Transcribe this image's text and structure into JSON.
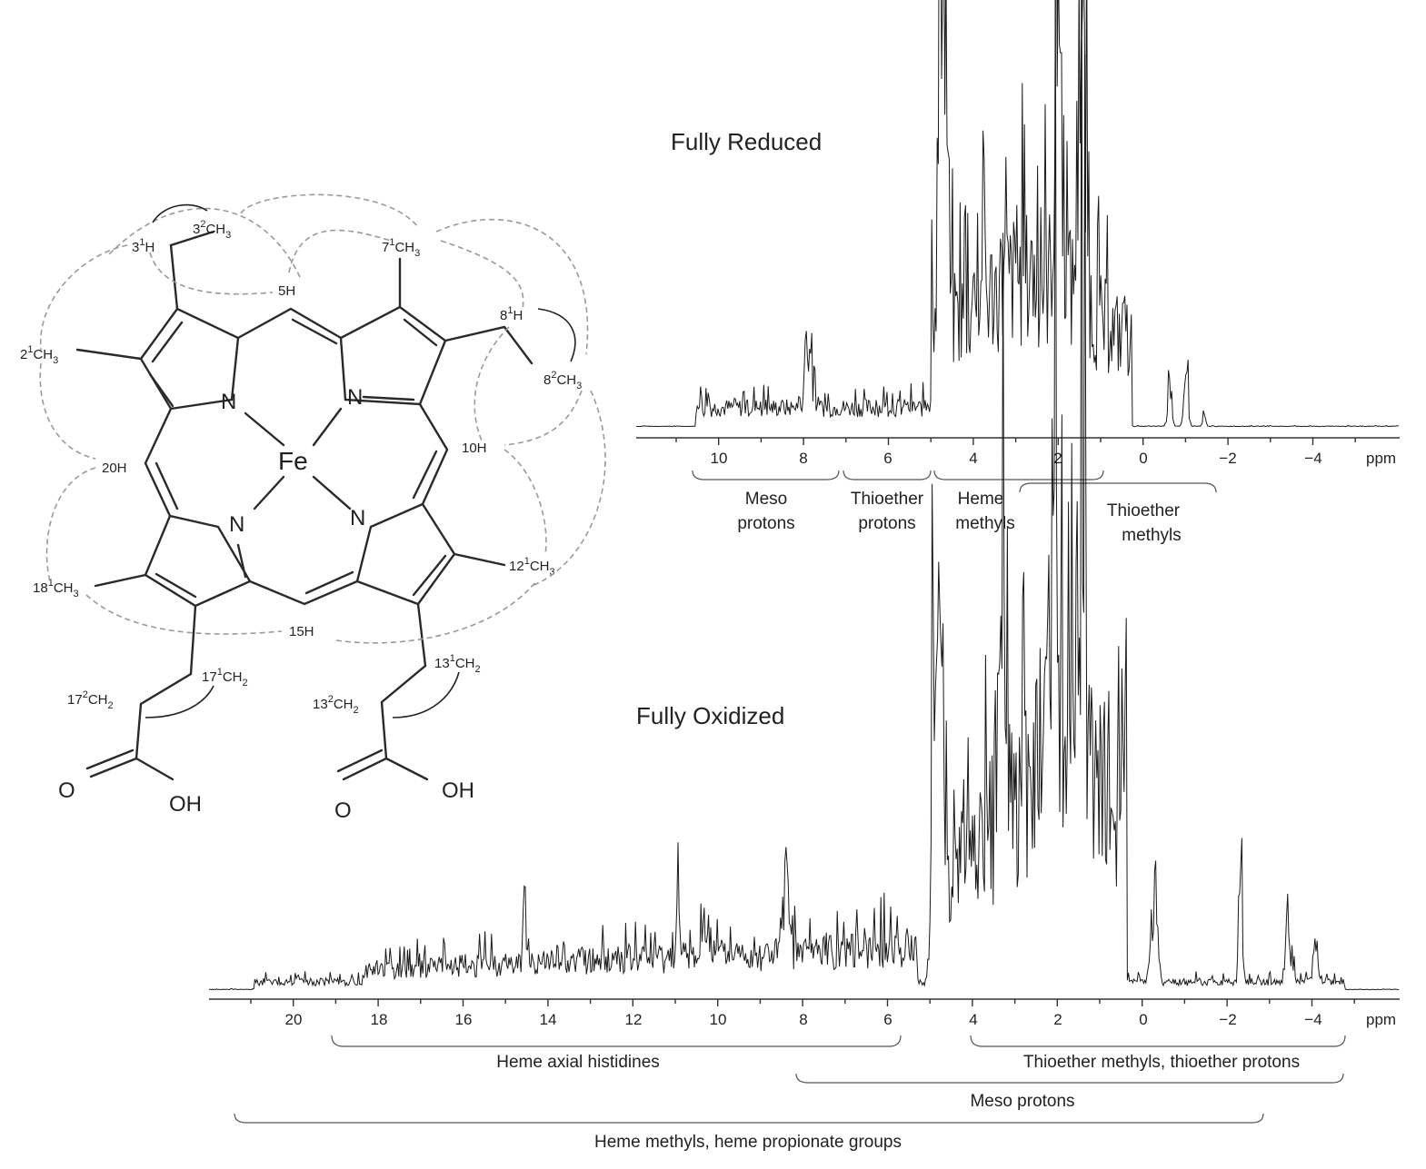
{
  "titles": {
    "reduced": "Fully Reduced",
    "oxidized": "Fully Oxidized"
  },
  "axis_unit": "ppm",
  "reduced_axis": {
    "ticks": [
      "10",
      "8",
      "6",
      "4",
      "2",
      "0",
      "−2",
      "−4"
    ],
    "groups": [
      {
        "line1": "Meso",
        "line2": "protons"
      },
      {
        "line1": "Thioether",
        "line2": "protons"
      },
      {
        "line1": "Heme",
        "line2": "methyls"
      },
      {
        "line1": "Thioether",
        "line2": "methyls"
      }
    ]
  },
  "oxidized_axis": {
    "ticks": [
      "20",
      "18",
      "16",
      "14",
      "12",
      "10",
      "8",
      "6",
      "4",
      "2",
      "0",
      "−2",
      "−4"
    ],
    "groups": [
      "Heme axial histidines",
      "Thioether methyls, thioether protons",
      "Meso protons",
      "Heme methyls, heme propionate groups"
    ]
  },
  "structure": {
    "center": "Fe",
    "nitrogen": "N",
    "labels": {
      "h3_1": "3",
      "h3_1b": "1",
      "h3_1c": "H",
      "c3_2": "3",
      "c3_2b": "2",
      "c3_2c": "CH",
      "c3_2d": "3",
      "c7_1": "7",
      "c7_1b": "1",
      "c7_1c": "CH",
      "c7_1d": "3",
      "h5": "5H",
      "c2_1": "2",
      "c2_1b": "1",
      "c2_1c": "CH",
      "c2_1d": "3",
      "h8_1": "8",
      "h8_1b": "1",
      "h8_1c": "H",
      "c8_2": "8",
      "c8_2b": "2",
      "c8_2c": "CH",
      "c8_2d": "3",
      "h20": "20H",
      "h10": "10H",
      "c18_1": "18",
      "c18_1b": "1",
      "c18_1c": "CH",
      "c18_1d": "3",
      "c12_1": "12",
      "c12_1b": "1",
      "c12_1c": "CH",
      "c12_1d": "3",
      "h15": "15H",
      "c17_1": "17",
      "c17_1b": "1",
      "c17_1c": "CH",
      "c17_1d": "2",
      "c17_2": "17",
      "c17_2b": "2",
      "c17_2c": "CH",
      "c17_2d": "2",
      "c13_1": "13",
      "c13_1b": "1",
      "c13_1c": "CH",
      "c13_1d": "2",
      "c13_2": "13",
      "c13_2b": "2",
      "c13_2c": "CH",
      "c13_2d": "2",
      "o_left": "O",
      "oh_left": "OH",
      "o_right": "O",
      "oh_right": "OH"
    }
  }
}
